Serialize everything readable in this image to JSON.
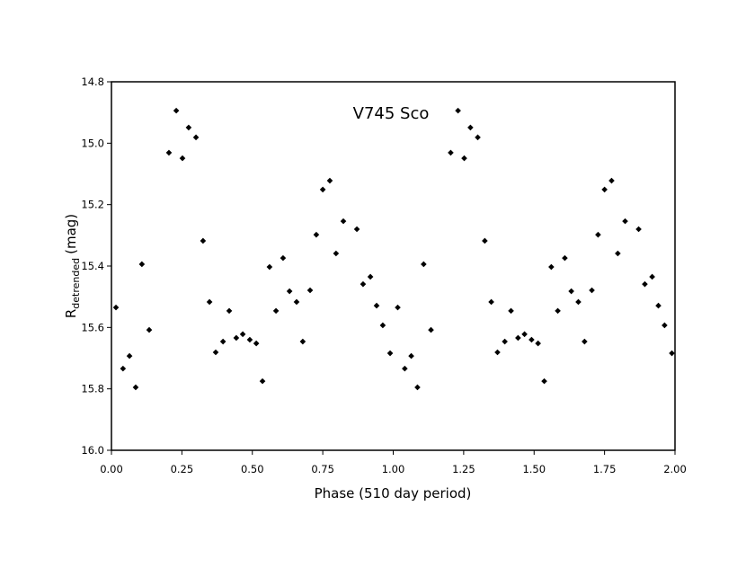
{
  "chart_data": {
    "type": "scatter",
    "title": "V745 Sco",
    "xlabel": "Phase (510 day period)",
    "ylabel": "R",
    "ylabel_sub": "detrended",
    "ylabel_unit": "(mag)",
    "color": "#000000",
    "xlim": [
      0,
      2
    ],
    "ylim": [
      16.0,
      14.8
    ],
    "y_inverted": true,
    "xticks": [
      {
        "value": 0,
        "label": "0.00"
      },
      {
        "value": 0.25,
        "label": "0.25"
      },
      {
        "value": 0.5,
        "label": "0.50"
      },
      {
        "value": 0.75,
        "label": "0.75"
      },
      {
        "value": 1,
        "label": "1.00"
      },
      {
        "value": 1.25,
        "label": "1.25"
      },
      {
        "value": 1.5,
        "label": "1.50"
      },
      {
        "value": 1.75,
        "label": "1.75"
      },
      {
        "value": 2,
        "label": "2.00"
      }
    ],
    "yticks": [
      14.8,
      {
        "value": 15.0,
        "label": "15.0"
      },
      15.2,
      15.4,
      15.6,
      15.8,
      {
        "value": 16.0,
        "label": "16.0"
      }
    ],
    "x": [
      0.016,
      0.041,
      0.064,
      0.086,
      0.108,
      0.134,
      0.204,
      0.23,
      0.252,
      0.274,
      0.3,
      0.325,
      0.348,
      0.37,
      0.396,
      0.418,
      0.443,
      0.466,
      0.491,
      0.514,
      0.536,
      0.561,
      0.584,
      0.609,
      0.632,
      0.657,
      0.679,
      0.705,
      0.727,
      0.75,
      0.775,
      0.797,
      0.823,
      0.871,
      0.893,
      0.919,
      0.941,
      0.963,
      0.989,
      1.016,
      1.041,
      1.064,
      1.086,
      1.108,
      1.134,
      1.204,
      1.23,
      1.252,
      1.274,
      1.3,
      1.325,
      1.348,
      1.37,
      1.396,
      1.418,
      1.443,
      1.466,
      1.491,
      1.514,
      1.536,
      1.561,
      1.584,
      1.609,
      1.632,
      1.657,
      1.679,
      1.705,
      1.727,
      1.75,
      1.775,
      1.797,
      1.823,
      1.871,
      1.893,
      1.919,
      1.941,
      1.963,
      1.989
    ],
    "values": [
      15.535,
      15.734,
      15.693,
      15.795,
      15.394,
      15.608,
      15.031,
      14.894,
      15.049,
      14.949,
      14.981,
      15.318,
      15.517,
      15.681,
      15.646,
      15.546,
      15.634,
      15.622,
      15.64,
      15.652,
      15.775,
      15.403,
      15.546,
      15.374,
      15.482,
      15.517,
      15.646,
      15.479,
      15.298,
      15.151,
      15.122,
      15.359,
      15.254,
      15.28,
      15.459,
      15.435,
      15.529,
      15.593,
      15.684,
      15.535,
      15.734,
      15.693,
      15.795,
      15.394,
      15.608,
      15.031,
      14.894,
      15.049,
      14.949,
      14.981,
      15.318,
      15.517,
      15.681,
      15.646,
      15.546,
      15.634,
      15.622,
      15.64,
      15.652,
      15.775,
      15.403,
      15.546,
      15.374,
      15.482,
      15.517,
      15.646,
      15.479,
      15.298,
      15.151,
      15.122,
      15.359,
      15.254,
      15.28,
      15.459,
      15.435,
      15.529,
      15.593,
      15.684
    ]
  }
}
